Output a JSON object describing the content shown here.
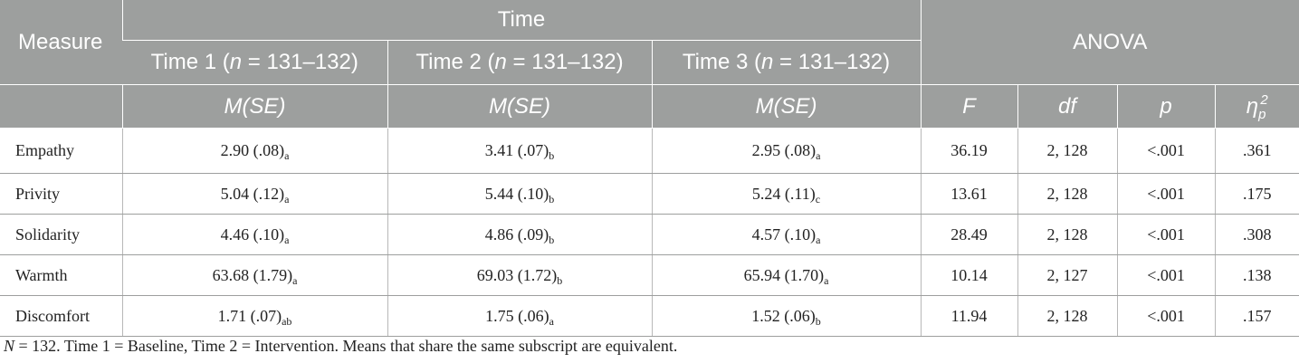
{
  "header": {
    "measure": "Measure",
    "time_group": "Time",
    "anova_group": "ANOVA",
    "time_columns": [
      {
        "label": "Time 1 (",
        "n_var": "n",
        "range": " = 131–132)"
      },
      {
        "label": "Time 2 (",
        "n_var": "n",
        "range": " = 131–132)"
      },
      {
        "label": "Time 3 (",
        "n_var": "n",
        "range": " = 131–132)"
      }
    ],
    "stat_label": "M(SE)",
    "anova_columns": {
      "f": "F",
      "df": "df",
      "p": "p",
      "eta": "η",
      "eta_sup": "2",
      "eta_sub": "p"
    }
  },
  "rows": [
    {
      "measure": "Empathy",
      "t1": "2.90 (.08)",
      "t1_sub": "a",
      "t2": "3.41 (.07)",
      "t2_sub": "b",
      "t3": "2.95 (.08)",
      "t3_sub": "a",
      "f": "36.19",
      "df": "2, 128",
      "p": "<.001",
      "eta": ".361"
    },
    {
      "measure": "Privity",
      "t1": "5.04 (.12)",
      "t1_sub": "a",
      "t2": "5.44 (.10)",
      "t2_sub": "b",
      "t3": "5.24 (.11)",
      "t3_sub": "c",
      "f": "13.61",
      "df": "2, 128",
      "p": "<.001",
      "eta": ".175"
    },
    {
      "measure": "Solidarity",
      "t1": "4.46 (.10)",
      "t1_sub": "a",
      "t2": "4.86 (.09)",
      "t2_sub": "b",
      "t3": "4.57 (.10)",
      "t3_sub": "a",
      "f": "28.49",
      "df": "2, 128",
      "p": "<.001",
      "eta": ".308"
    },
    {
      "measure": "Warmth",
      "t1": "63.68 (1.79)",
      "t1_sub": "a",
      "t2": "69.03 (1.72)",
      "t2_sub": "b",
      "t3": "65.94 (1.70)",
      "t3_sub": "a",
      "f": "10.14",
      "df": "2, 127",
      "p": "<.001",
      "eta": ".138"
    },
    {
      "measure": "Discomfort",
      "t1": "1.71 (.07)",
      "t1_sub": "ab",
      "t2": "1.75 (.06)",
      "t2_sub": "a",
      "t3": "1.52 (.06)",
      "t3_sub": "b",
      "f": "11.94",
      "df": "2, 128",
      "p": "<.001",
      "eta": ".157"
    }
  ],
  "note": {
    "n_var": "N",
    "text": " = 132. Time 1 = Baseline, Time 2 = Intervention. Means that share the same subscript are equivalent."
  }
}
